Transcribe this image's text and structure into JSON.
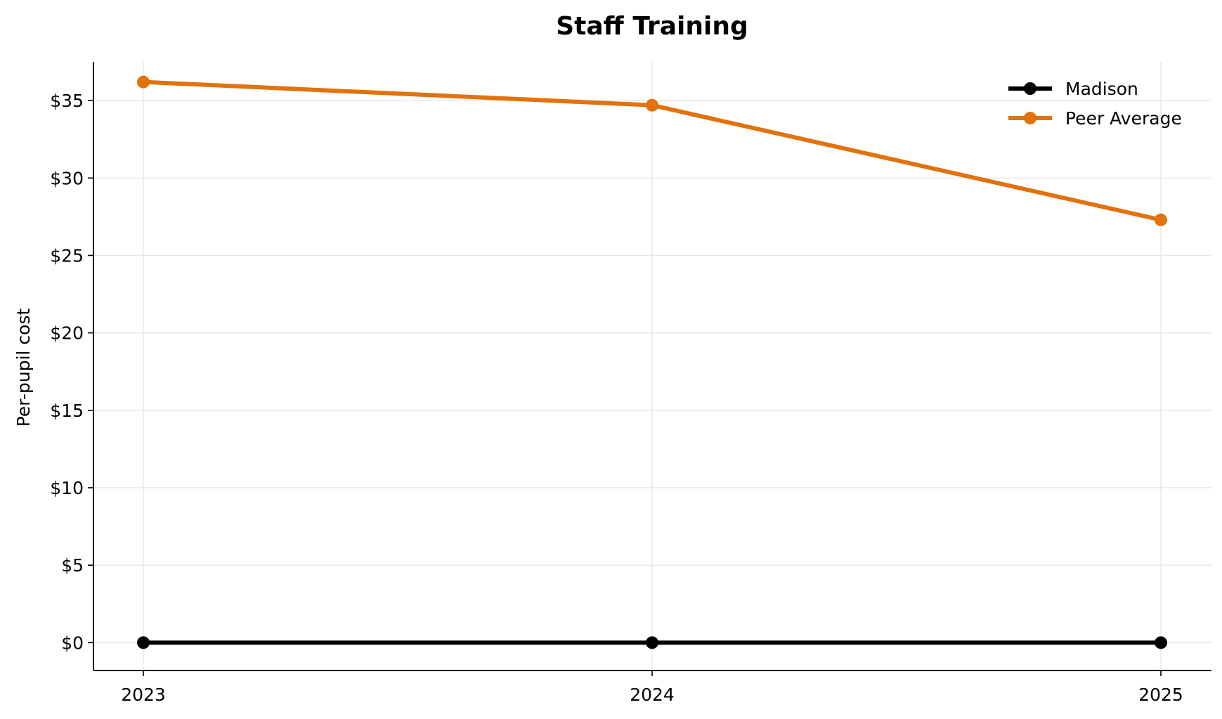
{
  "chart_data": {
    "type": "line",
    "title": "Staff Training",
    "xlabel": "",
    "ylabel": "Per-pupil cost",
    "x": [
      "2023",
      "2024",
      "2025"
    ],
    "ylim": [
      -1.8,
      37.5
    ],
    "y_ticks": [
      0,
      5,
      10,
      15,
      20,
      25,
      30,
      35
    ],
    "y_tick_labels": [
      "$0",
      "$5",
      "$10",
      "$15",
      "$20",
      "$25",
      "$30",
      "$35"
    ],
    "grid": true,
    "legend": "upper right",
    "series": [
      {
        "name": "Madison",
        "color": "#000000",
        "values": [
          0,
          0,
          0
        ]
      },
      {
        "name": "Peer Average",
        "color": "#E1720C",
        "values": [
          36.2,
          34.7,
          27.3
        ]
      }
    ]
  }
}
